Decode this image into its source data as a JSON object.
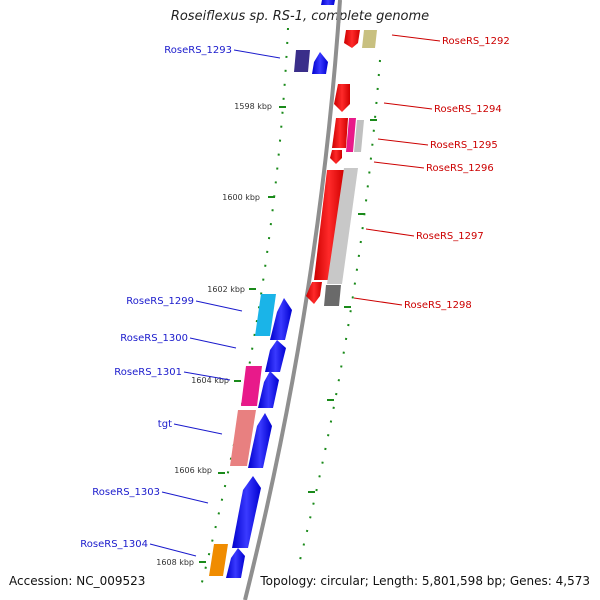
{
  "title": "Roseiflexus sp. RS-1, complete genome",
  "footer": {
    "accession": "Accession: NC_009523",
    "topology": "Topology: circular; Length: 5,801,598 bp; Genes: 4,573"
  },
  "scale_labels": [
    "1598 kbp",
    "1600 kbp",
    "1602 kbp",
    "1604 kbp",
    "1606 kbp",
    "1608 kbp"
  ],
  "genes_forward": [
    "RoseRS_1293",
    "RoseRS_1299",
    "RoseRS_1300",
    "RoseRS_1301",
    "tgt",
    "RoseRS_1303",
    "RoseRS_1304"
  ],
  "genes_reverse": [
    "RoseRS_1292",
    "RoseRS_1294",
    "RoseRS_1295",
    "RoseRS_1296",
    "RoseRS_1297",
    "RoseRS_1298"
  ],
  "colors": {
    "forward_label": "#1a1acc",
    "reverse_label": "#cc0000",
    "forward_gene": "#0000ee",
    "reverse_gene": "#ee0000",
    "backbone": "#8a8a8a",
    "tick": "#1a8a1a"
  }
}
